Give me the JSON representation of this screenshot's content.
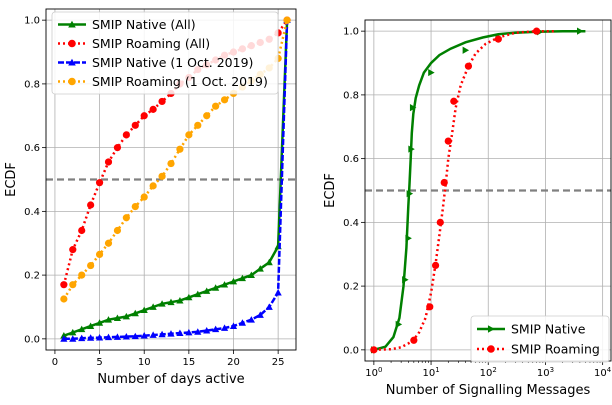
{
  "chart_data": [
    {
      "type": "line",
      "xlabel": "Number of days active",
      "ylabel": "ECDF",
      "xlim": [
        -1,
        27
      ],
      "ylim": [
        -0.035,
        1.035
      ],
      "xticks": [
        0,
        5,
        10,
        15,
        20,
        25
      ],
      "xtick_labels": [
        "0",
        "5",
        "10",
        "15",
        "20",
        "25"
      ],
      "yticks": [
        0.0,
        0.2,
        0.4,
        0.6,
        0.8,
        1.0
      ],
      "ytick_labels": [
        "0.0",
        "0.2",
        "0.4",
        "0.6",
        "0.8",
        "1.0"
      ],
      "grid": true,
      "legend_position": "top-left",
      "reference_line": {
        "y": 0.5,
        "color": "#808080",
        "style": "dashed"
      },
      "series": [
        {
          "name": "SMIP Native (All)",
          "color": "#008000",
          "marker": "triangle-up",
          "linestyle": "solid",
          "x": [
            1,
            2,
            3,
            4,
            5,
            6,
            7,
            8,
            9,
            10,
            11,
            12,
            13,
            14,
            15,
            16,
            17,
            18,
            19,
            20,
            21,
            22,
            23,
            24,
            25,
            26
          ],
          "y": [
            0.01,
            0.02,
            0.03,
            0.04,
            0.05,
            0.06,
            0.065,
            0.07,
            0.08,
            0.09,
            0.1,
            0.11,
            0.115,
            0.12,
            0.13,
            0.14,
            0.15,
            0.16,
            0.17,
            0.18,
            0.19,
            0.2,
            0.22,
            0.24,
            0.29,
            1.0
          ]
        },
        {
          "name": "SMIP Roaming (All)",
          "color": "#ff0000",
          "marker": "circle",
          "linestyle": "dotted",
          "x": [
            1,
            2,
            3,
            4,
            5,
            6,
            7,
            8,
            9,
            10,
            11,
            12,
            13,
            14,
            15,
            16,
            17,
            18,
            19,
            20,
            21,
            22,
            23,
            24,
            25,
            26
          ],
          "y": [
            0.17,
            0.28,
            0.34,
            0.42,
            0.49,
            0.555,
            0.6,
            0.64,
            0.67,
            0.7,
            0.72,
            0.745,
            0.77,
            0.8,
            0.82,
            0.845,
            0.86,
            0.875,
            0.89,
            0.9,
            0.91,
            0.92,
            0.93,
            0.94,
            0.96,
            1.0
          ]
        },
        {
          "name": "SMIP Native (1 Oct. 2019)",
          "color": "#0000ff",
          "marker": "triangle-up",
          "linestyle": "dashed",
          "x": [
            1,
            2,
            3,
            4,
            5,
            6,
            7,
            8,
            9,
            10,
            11,
            12,
            13,
            14,
            15,
            16,
            17,
            18,
            19,
            20,
            21,
            22,
            23,
            24,
            25,
            26
          ],
          "y": [
            0.0,
            0.0,
            0.002,
            0.003,
            0.004,
            0.005,
            0.006,
            0.007,
            0.008,
            0.01,
            0.012,
            0.014,
            0.016,
            0.018,
            0.02,
            0.022,
            0.026,
            0.03,
            0.034,
            0.04,
            0.05,
            0.06,
            0.075,
            0.1,
            0.145,
            1.0
          ]
        },
        {
          "name": "SMIP Roaming (1 Oct. 2019)",
          "color": "#ffa500",
          "marker": "circle",
          "linestyle": "dotted",
          "x": [
            1,
            2,
            3,
            4,
            5,
            6,
            7,
            8,
            9,
            10,
            11,
            12,
            13,
            14,
            15,
            16,
            17,
            18,
            19,
            20,
            21,
            22,
            23,
            24,
            25,
            26
          ],
          "y": [
            0.125,
            0.17,
            0.2,
            0.23,
            0.265,
            0.3,
            0.34,
            0.38,
            0.415,
            0.445,
            0.48,
            0.51,
            0.55,
            0.595,
            0.64,
            0.67,
            0.7,
            0.73,
            0.75,
            0.77,
            0.79,
            0.81,
            0.83,
            0.85,
            0.88,
            1.0
          ]
        }
      ]
    },
    {
      "type": "line",
      "xlabel": "Number of Signalling Messages",
      "ylabel": "ECDF",
      "xscale": "log",
      "xlim": [
        0.7,
        14000
      ],
      "ylim": [
        -0.035,
        1.035
      ],
      "xticks": [
        1,
        10,
        100,
        1000,
        10000
      ],
      "xtick_labels": [
        {
          "base": "10",
          "exp": "0"
        },
        {
          "base": "10",
          "exp": "1"
        },
        {
          "base": "10",
          "exp": "2"
        },
        {
          "base": "10",
          "exp": "3"
        },
        {
          "base": "10",
          "exp": "4"
        }
      ],
      "yticks": [
        0.0,
        0.2,
        0.4,
        0.6,
        0.8,
        1.0
      ],
      "ytick_labels": [
        "0.0",
        "0.2",
        "0.4",
        "0.6",
        "0.8",
        "1.0"
      ],
      "grid": true,
      "legend_position": "bottom-right",
      "reference_line": {
        "y": 0.5,
        "color": "#808080",
        "style": "dashed"
      },
      "series": [
        {
          "name": "SMIP Native",
          "color": "#008000",
          "marker": "triangle-right",
          "linestyle": "solid",
          "x": [
            1,
            1.6,
            2.2,
            2.8,
            3.3,
            3.7,
            4.0,
            4.2,
            4.4,
            4.6,
            4.9,
            5.4,
            6.2,
            7.5,
            10,
            14,
            22,
            40,
            80,
            150,
            300,
            700,
            2000,
            5000
          ],
          "y": [
            0.0,
            0.01,
            0.04,
            0.1,
            0.2,
            0.32,
            0.45,
            0.52,
            0.6,
            0.68,
            0.74,
            0.79,
            0.83,
            0.87,
            0.9,
            0.925,
            0.945,
            0.965,
            0.98,
            0.99,
            0.995,
            0.998,
            1.0,
            1.0
          ],
          "markers_x": [
            1,
            2.7,
            3.5,
            4.0,
            4.2,
            4.5,
            4.8,
            10,
            40,
            150,
            800,
            4000
          ],
          "markers_y": [
            0.0,
            0.08,
            0.22,
            0.35,
            0.49,
            0.63,
            0.76,
            0.87,
            0.94,
            0.98,
            0.998,
            1.0
          ]
        },
        {
          "name": "SMIP Roaming",
          "color": "#ff0000",
          "marker": "circle",
          "linestyle": "dotted",
          "x": [
            1,
            2,
            3,
            4.5,
            6,
            8,
            10,
            12,
            14,
            16,
            18,
            20,
            23,
            27,
            33,
            45,
            60,
            90,
            150,
            300,
            700,
            1500
          ],
          "y": [
            0.0,
            0.002,
            0.008,
            0.025,
            0.05,
            0.1,
            0.18,
            0.27,
            0.36,
            0.44,
            0.52,
            0.6,
            0.67,
            0.76,
            0.83,
            0.89,
            0.93,
            0.96,
            0.98,
            0.995,
            1.0,
            1.0
          ],
          "markers_x": [
            1,
            5,
            9.5,
            12,
            14.5,
            17,
            20,
            25,
            45,
            150,
            700
          ],
          "markers_y": [
            0.0,
            0.03,
            0.135,
            0.265,
            0.4,
            0.525,
            0.655,
            0.78,
            0.89,
            0.975,
            1.0
          ]
        }
      ]
    }
  ]
}
